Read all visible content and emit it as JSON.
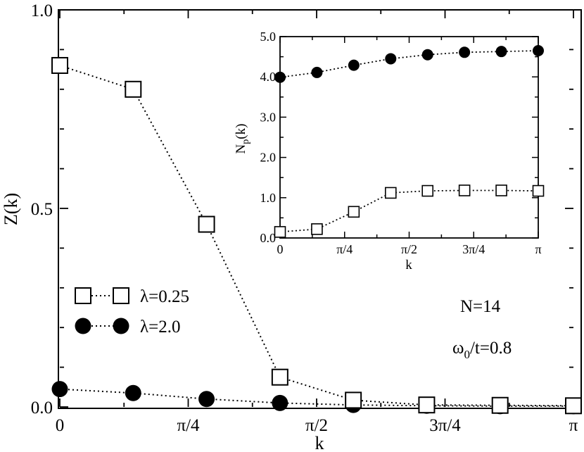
{
  "chart_data": [
    {
      "type": "line",
      "xlabel": "k",
      "ylabel": "Z(k)",
      "xlim": [
        0,
        3.14159
      ],
      "ylim": [
        0,
        1.0
      ],
      "x_ticks": [
        {
          "value": 0,
          "label": "0"
        },
        {
          "value": 0.7854,
          "label": "π/4"
        },
        {
          "value": 1.5708,
          "label": "π/2"
        },
        {
          "value": 2.3562,
          "label": "3π/4"
        },
        {
          "value": 3.14159,
          "label": "π"
        }
      ],
      "y_ticks": [
        {
          "value": 0,
          "label": "0.0"
        },
        {
          "value": 0.5,
          "label": "0.5"
        },
        {
          "value": 1.0,
          "label": "1.0"
        }
      ],
      "grid": false,
      "legend_position": "lower-left",
      "series": [
        {
          "name": "λ=0.25",
          "marker": "open-square",
          "x": [
            0,
            0.4488,
            0.8976,
            1.3464,
            1.7952,
            2.244,
            2.6928,
            3.1416
          ],
          "y": [
            0.86,
            0.8,
            0.46,
            0.075,
            0.017,
            0.005,
            0.004,
            0.003
          ]
        },
        {
          "name": "λ=2.0",
          "marker": "filled-circle",
          "x": [
            0,
            0.4488,
            0.8976,
            1.3464,
            1.7952,
            2.244,
            2.6928,
            3.1416
          ],
          "y": [
            0.045,
            0.035,
            0.02,
            0.01,
            0.005,
            0.003,
            0.002,
            0.002
          ]
        }
      ],
      "annotations": [
        "N=14",
        "ω0/t=0.8"
      ]
    },
    {
      "type": "line",
      "xlabel": "k",
      "ylabel": "Np(k)",
      "xlim": [
        0,
        3.14159
      ],
      "ylim": [
        0,
        5.0
      ],
      "x_ticks": [
        {
          "value": 0,
          "label": "0"
        },
        {
          "value": 0.7854,
          "label": "π/4"
        },
        {
          "value": 1.5708,
          "label": "π/2"
        },
        {
          "value": 2.3562,
          "label": "3π/4"
        },
        {
          "value": 3.14159,
          "label": "π"
        }
      ],
      "y_ticks": [
        {
          "value": 0,
          "label": "0.0"
        },
        {
          "value": 1,
          "label": "1.0"
        },
        {
          "value": 2,
          "label": "2.0"
        },
        {
          "value": 3,
          "label": "3.0"
        },
        {
          "value": 4,
          "label": "4.0"
        },
        {
          "value": 5,
          "label": "5.0"
        }
      ],
      "grid": false,
      "series": [
        {
          "name": "λ=0.25",
          "marker": "open-square",
          "x": [
            0,
            0.4488,
            0.8976,
            1.3464,
            1.7952,
            2.244,
            2.6928,
            3.1416
          ],
          "y": [
            0.15,
            0.22,
            0.65,
            1.12,
            1.17,
            1.18,
            1.18,
            1.17
          ]
        },
        {
          "name": "λ=2.0",
          "marker": "filled-circle",
          "x": [
            0,
            0.4488,
            0.8976,
            1.3464,
            1.7952,
            2.244,
            2.6928,
            3.1416
          ],
          "y": [
            3.99,
            4.11,
            4.29,
            4.45,
            4.55,
            4.61,
            4.63,
            4.65
          ]
        }
      ]
    }
  ],
  "text": {
    "main_xlabel": "k",
    "main_ylabel": "Z(k)",
    "inset_xlabel": "k",
    "inset_ylabel_main": "N",
    "inset_ylabel_sub": "p",
    "inset_ylabel_tail": "(k)",
    "legend_1": "λ=0.25",
    "legend_2": "λ=2.0",
    "ann_n": "N=14",
    "ann_omega_main": "ω",
    "ann_omega_sub": "0",
    "ann_omega_tail": "/t=0.8"
  }
}
